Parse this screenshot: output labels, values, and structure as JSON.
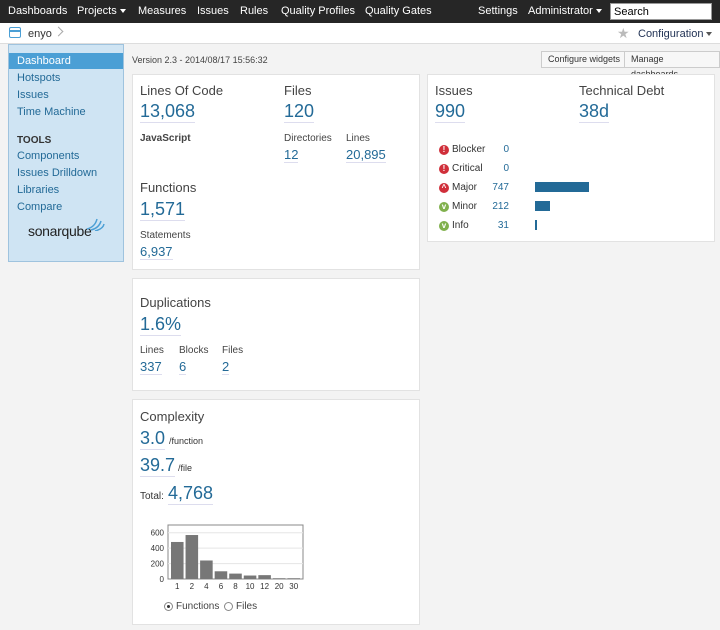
{
  "nav": {
    "items": [
      "Dashboards",
      "Projects",
      "Measures",
      "Issues",
      "Rules",
      "Quality Profiles",
      "Quality Gates"
    ],
    "settings": "Settings",
    "admin": "Administrator",
    "search_value": "Search"
  },
  "breadcrumb": {
    "project": "enyo",
    "configuration": "Configuration"
  },
  "sidebar": {
    "items": [
      "Dashboard",
      "Hotspots",
      "Issues",
      "Time Machine"
    ],
    "tools_heading": "TOOLS",
    "tools": [
      "Components",
      "Issues Drilldown",
      "Libraries",
      "Compare"
    ],
    "logo": "sonarqube"
  },
  "header": {
    "version": "Version 2.3 - 2014/08/17 15:56:32",
    "configure_widgets": "Configure widgets",
    "manage_dashboards": "Manage dashboards"
  },
  "size_widget": {
    "loc_label": "Lines Of Code",
    "loc_value": "13,068",
    "language": "JavaScript",
    "files_label": "Files",
    "files_value": "120",
    "directories_label": "Directories",
    "directories_value": "12",
    "lines_label": "Lines",
    "lines_value": "20,895",
    "functions_label": "Functions",
    "functions_value": "1,571",
    "statements_label": "Statements",
    "statements_value": "6,937"
  },
  "issues_widget": {
    "issues_label": "Issues",
    "issues_value": "990",
    "debt_label": "Technical Debt",
    "debt_value": "38d",
    "severities": [
      {
        "label": "Blocker",
        "count": "0",
        "value": 0,
        "color": "#d02f3a",
        "icon": "blocker-icon"
      },
      {
        "label": "Critical",
        "count": "0",
        "value": 0,
        "color": "#d02f3a",
        "icon": "critical-icon"
      },
      {
        "label": "Major",
        "count": "747",
        "value": 747,
        "color": "#d02f3a",
        "icon": "major-icon"
      },
      {
        "label": "Minor",
        "count": "212",
        "value": 212,
        "color": "#80b04c",
        "icon": "minor-icon"
      },
      {
        "label": "Info",
        "count": "31",
        "value": 31,
        "color": "#80b04c",
        "icon": "info-icon"
      }
    ]
  },
  "duplications_widget": {
    "label": "Duplications",
    "value": "1.6%",
    "lines_label": "Lines",
    "lines_value": "337",
    "blocks_label": "Blocks",
    "blocks_value": "6",
    "files_label": "Files",
    "files_value": "2"
  },
  "complexity_widget": {
    "label": "Complexity",
    "per_function": "3.0",
    "per_function_unit": "/function",
    "per_file": "39.7",
    "per_file_unit": "/file",
    "total_label": "Total:",
    "total_value": "4,768",
    "radio_functions": "Functions",
    "radio_files": "Files"
  },
  "chart_data": {
    "type": "bar",
    "categories": [
      "1",
      "2",
      "4",
      "6",
      "8",
      "10",
      "12",
      "20",
      "30"
    ],
    "values": [
      480,
      570,
      240,
      100,
      70,
      45,
      50,
      10,
      10
    ],
    "ylim": [
      0,
      700
    ],
    "yticks": [
      "0",
      "200",
      "400",
      "600"
    ],
    "title": "",
    "xlabel": "",
    "ylabel": ""
  }
}
